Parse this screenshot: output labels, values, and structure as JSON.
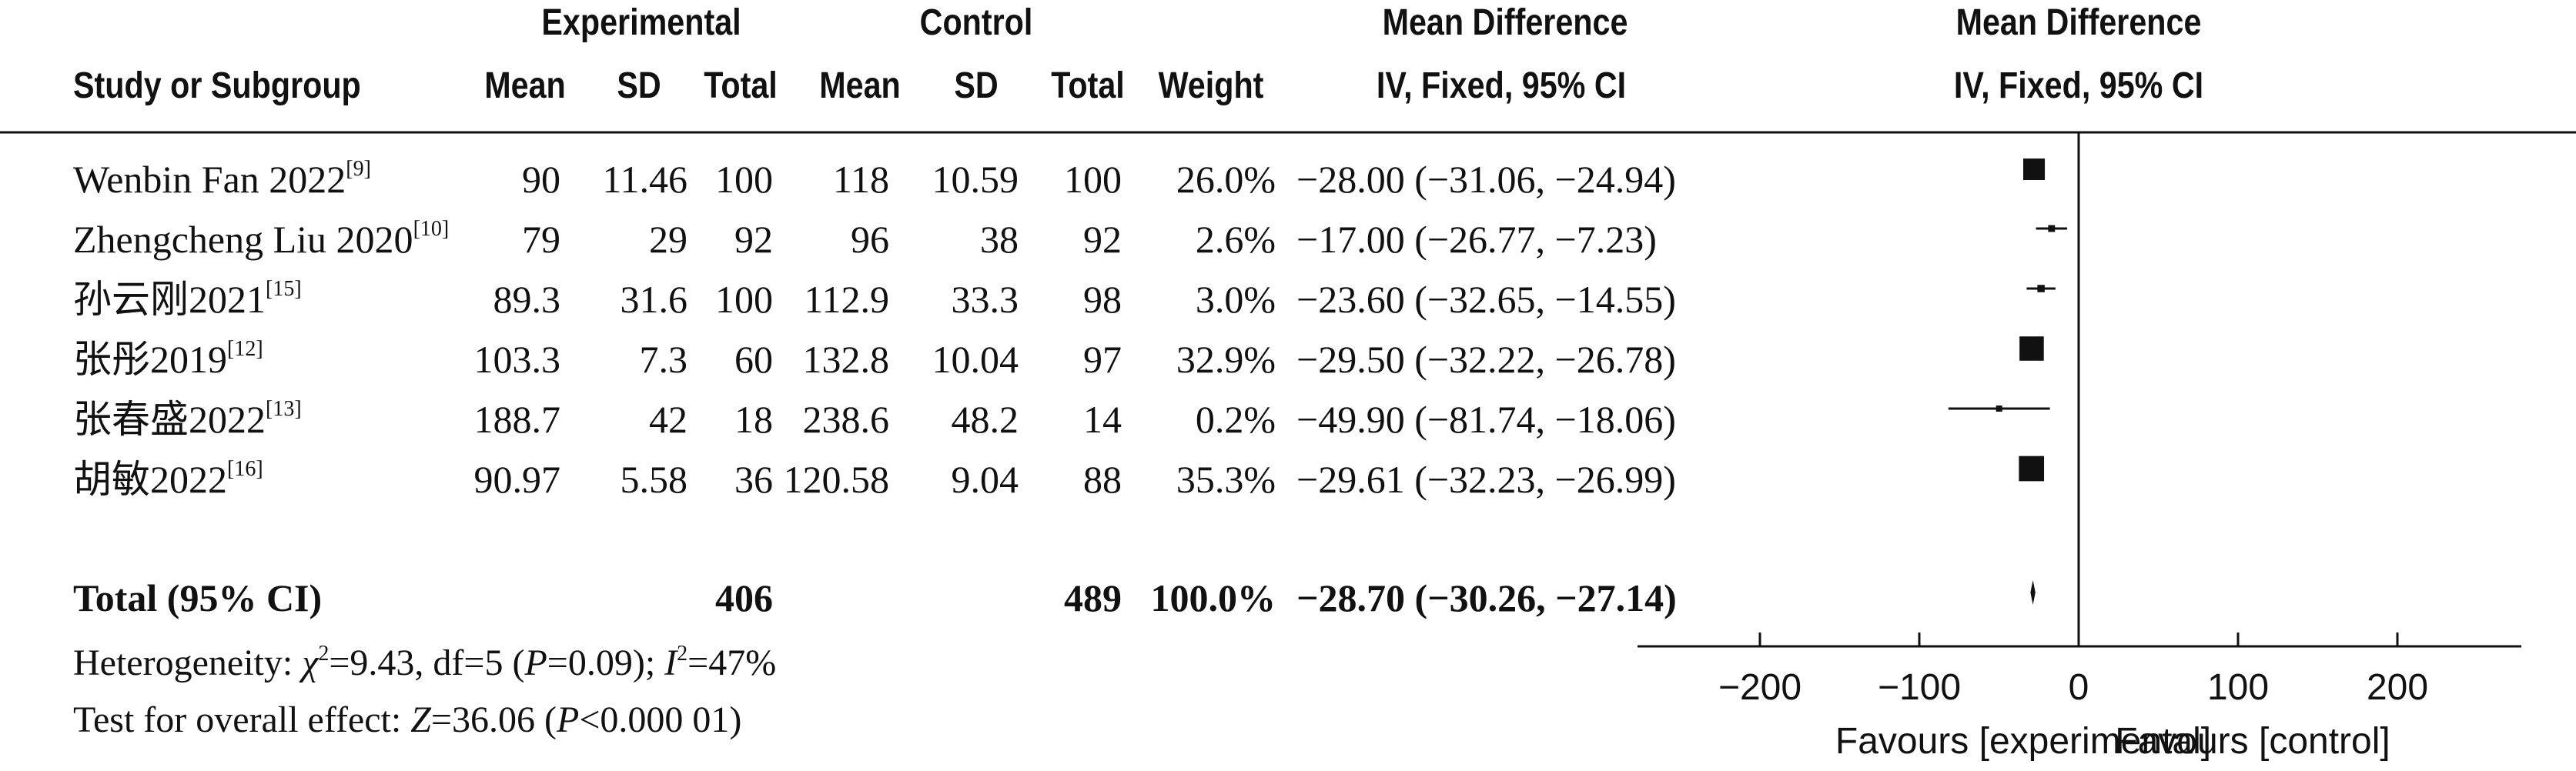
{
  "header": {
    "group1": "Experimental",
    "group2": "Control",
    "effect": "Mean Difference",
    "effect_plot": "Mean Difference",
    "col_study": "Study or Subgroup",
    "col_mean1": "Mean",
    "col_sd1": "SD",
    "col_total1": "Total",
    "col_mean2": "Mean",
    "col_sd2": "SD",
    "col_total2": "Total",
    "col_weight": "Weight",
    "col_ci": "IV, Fixed, 95% CI",
    "col_ci_plot": "IV, Fixed, 95% CI"
  },
  "studies": [
    {
      "name": "Wenbin Fan 2022",
      "ref": "[9]",
      "mean1": "90",
      "sd1": "11.46",
      "total1": "100",
      "mean2": "118",
      "sd2": "10.59",
      "total2": "100",
      "weight": "26.0%",
      "ci": "−28.00 (−31.06, −24.94)"
    },
    {
      "name": "Zhengcheng Liu 2020",
      "ref": "[10]",
      "mean1": "79",
      "sd1": "29",
      "total1": "92",
      "mean2": "96",
      "sd2": "38",
      "total2": "92",
      "weight": "2.6%",
      "ci": "−17.00 (−26.77, −7.23)"
    },
    {
      "name": "孙云刚2021",
      "ref": "[15]",
      "mean1": "89.3",
      "sd1": "31.6",
      "total1": "100",
      "mean2": "112.9",
      "sd2": "33.3",
      "total2": "98",
      "weight": "3.0%",
      "ci": "−23.60 (−32.65, −14.55)"
    },
    {
      "name": "张彤2019",
      "ref": "[12]",
      "mean1": "103.3",
      "sd1": "7.3",
      "total1": "60",
      "mean2": "132.8",
      "sd2": "10.04",
      "total2": "97",
      "weight": "32.9%",
      "ci": "−29.50 (−32.22, −26.78)"
    },
    {
      "name": "张春盛2022",
      "ref": "[13]",
      "mean1": "188.7",
      "sd1": "42",
      "total1": "18",
      "mean2": "238.6",
      "sd2": "48.2",
      "total2": "14",
      "weight": "0.2%",
      "ci": "−49.90 (−81.74, −18.06)"
    },
    {
      "name": "胡敏2022",
      "ref": "[16]",
      "mean1": "90.97",
      "sd1": "5.58",
      "total1": "36",
      "mean2": "120.58",
      "sd2": "9.04",
      "total2": "88",
      "weight": "35.3%",
      "ci": "−29.61 (−32.23, −26.99)"
    }
  ],
  "total": {
    "label": "Total (95% CI)",
    "total1": "406",
    "total2": "489",
    "weight": "100.0%",
    "ci": "−28.70 (−30.26, −27.14)"
  },
  "footer": {
    "het_prefix": "Heterogeneity: ",
    "het_chi": "χ",
    "het_chi_sup": "2",
    "het_mid": "=9.43, df=5 (",
    "het_p": "P",
    "het_p_val": "=0.09); ",
    "het_i": "I",
    "het_i_sup": "2",
    "het_i_val": "=47%",
    "overall_prefix": "Test for overall effect: ",
    "overall_z": "Z",
    "overall_z_val": "=36.06 (",
    "overall_p": "P",
    "overall_p_val": "<0.000 01)"
  },
  "axis": {
    "favours_left": "Favours [experimental]",
    "favours_right": "Favours [control]"
  },
  "chart_data": {
    "type": "forest",
    "xlim": [
      -260,
      280
    ],
    "ticks": [
      -200,
      -100,
      0,
      100,
      200
    ],
    "tick_labels": [
      "−200",
      "−100",
      "0",
      "100",
      "200"
    ],
    "null_line": 0,
    "points": [
      {
        "study": "Wenbin Fan 2022",
        "md": -28.0,
        "lo": -31.06,
        "hi": -24.94,
        "weight": 26.0
      },
      {
        "study": "Zhengcheng Liu 2020",
        "md": -17.0,
        "lo": -26.77,
        "hi": -7.23,
        "weight": 2.6
      },
      {
        "study": "孙云刚2021",
        "md": -23.6,
        "lo": -32.65,
        "hi": -14.55,
        "weight": 3.0
      },
      {
        "study": "张彤2019",
        "md": -29.5,
        "lo": -32.22,
        "hi": -26.78,
        "weight": 32.9
      },
      {
        "study": "张春盛2022",
        "md": -49.9,
        "lo": -81.74,
        "hi": -18.06,
        "weight": 0.2
      },
      {
        "study": "胡敏2022",
        "md": -29.61,
        "lo": -32.23,
        "hi": -26.99,
        "weight": 35.3
      }
    ],
    "pooled": {
      "md": -28.7,
      "lo": -30.26,
      "hi": -27.14
    }
  }
}
